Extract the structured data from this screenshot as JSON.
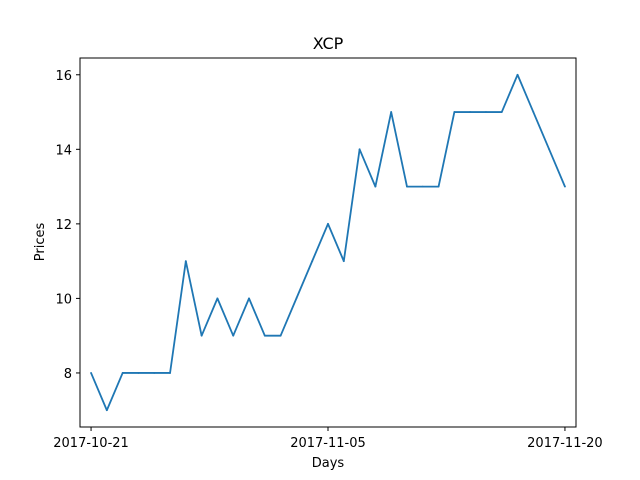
{
  "chart_data": {
    "type": "line",
    "title": "XCP",
    "xlabel": "Days",
    "ylabel": "Prices",
    "x": [
      "2017-10-21",
      "2017-10-22",
      "2017-10-23",
      "2017-10-24",
      "2017-10-25",
      "2017-10-26",
      "2017-10-27",
      "2017-10-28",
      "2017-10-29",
      "2017-10-30",
      "2017-10-31",
      "2017-11-01",
      "2017-11-02",
      "2017-11-03",
      "2017-11-04",
      "2017-11-05",
      "2017-11-06",
      "2017-11-07",
      "2017-11-08",
      "2017-11-09",
      "2017-11-10",
      "2017-11-11",
      "2017-11-12",
      "2017-11-13",
      "2017-11-14",
      "2017-11-15",
      "2017-11-16",
      "2017-11-17",
      "2017-11-18",
      "2017-11-19",
      "2017-11-20"
    ],
    "series": [
      {
        "color": "#1f77b4",
        "values": [
          8,
          7,
          8,
          8,
          8,
          8,
          11,
          9,
          10,
          9,
          10,
          9,
          9,
          10,
          11,
          12,
          11,
          14,
          13,
          15,
          13,
          13,
          13,
          15,
          15,
          15,
          15,
          16,
          15,
          14,
          13
        ]
      }
    ],
    "x_ticks": [
      "2017-10-21",
      "2017-11-05",
      "2017-11-20"
    ],
    "y_ticks": [
      8,
      10,
      12,
      14,
      16
    ],
    "xlim": [
      "2017-10-20T07:12",
      "2017-11-20T16:48"
    ],
    "ylim": [
      6.55,
      16.45
    ],
    "grid": false,
    "legend": "none"
  }
}
